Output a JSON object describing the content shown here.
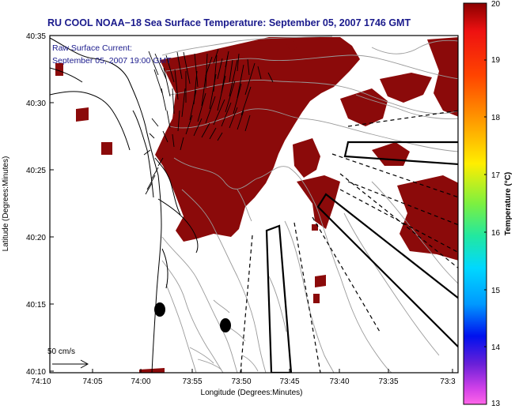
{
  "title": "RU COOL  NOAA−18  Sea Surface Temperature:  September 05, 2007 1746 GMT",
  "annotation": {
    "line1": "Raw Surface Current:",
    "line2": "September 05, 2007 19:00 GMT"
  },
  "scale": {
    "label": "50 cm/s"
  },
  "axes": {
    "xlabel": "Longitude (Degrees:Minutes)",
    "ylabel": "Latitude (Degrees:Minutes)",
    "x_ticks": [
      "74:10",
      "74:05",
      "74:00",
      "73:55",
      "73:50",
      "73:45",
      "73:40",
      "73:35",
      "73:3"
    ],
    "y_ticks": [
      "40:35",
      "40:30",
      "40:25",
      "40:20",
      "40:15",
      "40:10"
    ]
  },
  "colorbar": {
    "label": "Temperature (°C)",
    "ticks": [
      "20",
      "19",
      "18",
      "17",
      "16",
      "15",
      "14",
      "13"
    ],
    "range": [
      13,
      20
    ]
  },
  "colors": {
    "title": "#1a1a8c",
    "annotation": "#1a1a8c",
    "sst_patch": "#8b0a0a",
    "land_line": "#000000",
    "contour": "#9a9a9a",
    "marker": "#000000"
  }
}
